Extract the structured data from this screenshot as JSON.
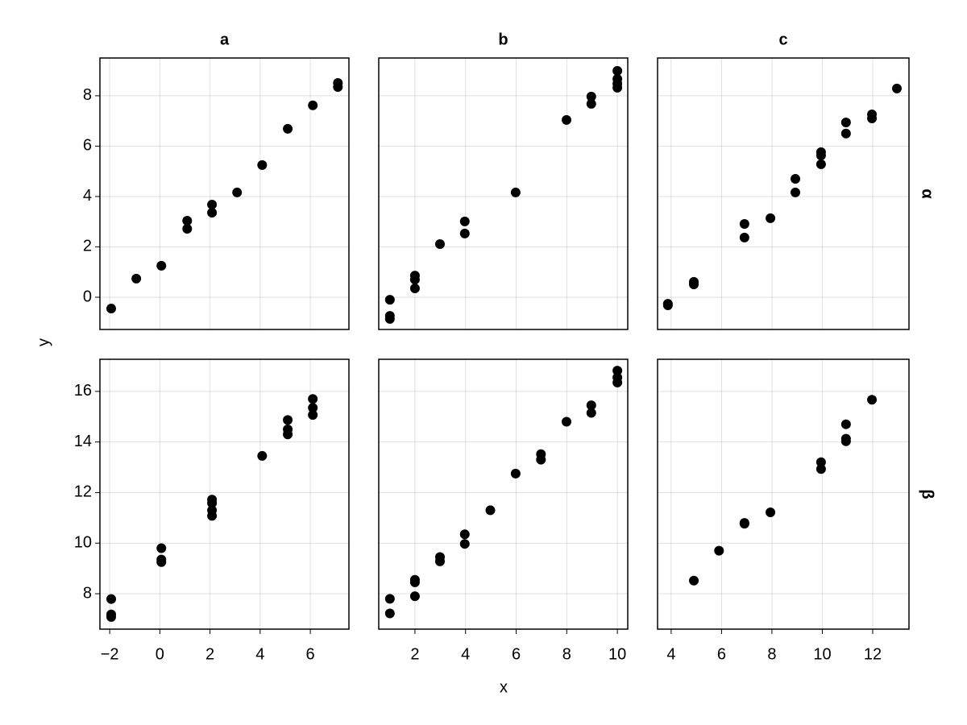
{
  "chart_data": {
    "type": "scatter",
    "x_label": "x",
    "y_label": "y",
    "grid": true,
    "color": "#000000",
    "columns": [
      {
        "title": "a",
        "xlim": [
          -2.39,
          7.54
        ],
        "xticks": [
          {
            "value": -2,
            "label": "−2"
          },
          0,
          2,
          4,
          6
        ]
      },
      {
        "title": "b",
        "xlim": [
          0.57,
          10.41
        ],
        "xticks": [
          2,
          4,
          6,
          8,
          10
        ]
      },
      {
        "title": "c",
        "xlim": [
          3.46,
          13.44
        ],
        "xticks": [
          4,
          6,
          8,
          10,
          12
        ]
      }
    ],
    "rows": [
      {
        "title": "α",
        "ylim": [
          -1.28,
          9.5
        ],
        "yticks": [
          0,
          2,
          4,
          6,
          8
        ]
      },
      {
        "title": "β",
        "ylim": [
          6.6,
          17.27
        ],
        "yticks": [
          8,
          10,
          12,
          14,
          16
        ]
      }
    ],
    "panels": [
      [
        {
          "x": [
            -1.94,
            -0.94,
            0.06,
            1.09,
            1.09,
            2.08,
            2.08,
            3.08,
            4.08,
            5.1,
            6.1,
            7.1,
            7.1
          ],
          "y": [
            -0.45,
            0.74,
            1.25,
            3.04,
            2.72,
            3.68,
            3.36,
            4.16,
            5.25,
            6.69,
            7.62,
            8.51,
            8.35
          ]
        },
        {
          "x": [
            1.01,
            1.01,
            1.01,
            2,
            2,
            2,
            2.99,
            3.97,
            3.97,
            5.98,
            7.99,
            8.97,
            8.97,
            10,
            10,
            10,
            10
          ],
          "y": [
            -0.1,
            -0.74,
            -0.86,
            0.86,
            0.7,
            0.35,
            2.11,
            3.01,
            2.53,
            4.16,
            7.04,
            7.97,
            7.68,
            8.99,
            8.67,
            8.48,
            8.32
          ]
        },
        {
          "x": [
            3.87,
            3.87,
            4.9,
            4.9,
            6.91,
            6.91,
            7.94,
            8.93,
            8.93,
            9.95,
            9.95,
            9.95,
            10.94,
            10.94,
            11.97,
            11.97,
            12.96
          ],
          "y": [
            -0.26,
            -0.32,
            0.61,
            0.51,
            2.91,
            2.37,
            3.14,
            4.7,
            4.16,
            5.76,
            5.63,
            5.28,
            6.94,
            6.5,
            7.26,
            7.1,
            8.29
          ]
        }
      ],
      [
        {
          "x": [
            -1.94,
            -1.94,
            -1.94,
            0.06,
            0.06,
            0.06,
            2.08,
            2.08,
            2.08,
            2.08,
            4.08,
            5.1,
            5.1,
            5.1,
            6.1,
            6.1,
            6.1
          ],
          "y": [
            7.79,
            7.18,
            7.08,
            9.8,
            9.35,
            9.25,
            11.72,
            11.58,
            11.3,
            11.08,
            13.45,
            14.87,
            14.5,
            14.3,
            15.7,
            15.35,
            15.07
          ]
        },
        {
          "x": [
            1.01,
            1.01,
            2,
            2,
            2,
            2.99,
            2.99,
            3.97,
            3.97,
            4.98,
            5.98,
            6.98,
            6.98,
            7.99,
            8.97,
            8.97,
            10,
            10,
            10
          ],
          "y": [
            7.8,
            7.22,
            8.55,
            8.45,
            7.9,
            9.45,
            9.28,
            10.35,
            9.97,
            11.3,
            12.75,
            13.52,
            13.3,
            14.8,
            15.45,
            15.15,
            16.82,
            16.55,
            16.35
          ]
        },
        {
          "x": [
            4.9,
            5.9,
            6.91,
            6.91,
            7.94,
            9.95,
            9.95,
            10.94,
            10.94,
            10.94,
            11.97
          ],
          "y": [
            8.52,
            9.7,
            10.8,
            10.77,
            11.22,
            13.2,
            12.93,
            14.7,
            14.13,
            14.03,
            15.67
          ]
        }
      ]
    ]
  }
}
